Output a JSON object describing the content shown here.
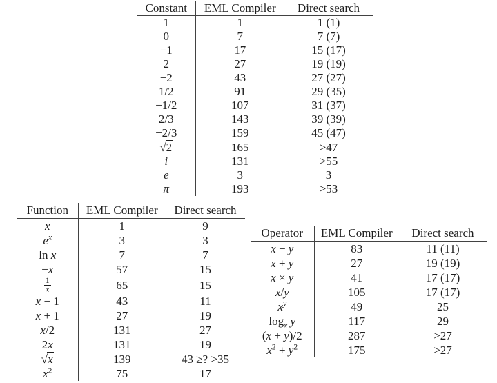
{
  "page": {
    "background": "#ffffff",
    "text_color": "#1f1f1f",
    "rule_color": "#424242"
  },
  "tables": [
    {
      "id": "constants",
      "headers": [
        "Constant",
        "EML Compiler",
        "Direct search"
      ],
      "rows": [
        [
          "1",
          "1",
          "1 (1)"
        ],
        [
          "0",
          "7",
          "7 (7)"
        ],
        [
          "−1",
          "17",
          "15 (17)"
        ],
        [
          "2",
          "27",
          "19 (19)"
        ],
        [
          "−2",
          "43",
          "27 (27)"
        ],
        [
          "1/2",
          "91",
          "29 (35)"
        ],
        [
          "−1/2",
          "107",
          "31 (37)"
        ],
        [
          "2/3",
          "143",
          "39 (39)"
        ],
        [
          "−2/3",
          "159",
          "45 (47)"
        ],
        [
          "sqrt{2}",
          "165",
          ">47"
        ],
        [
          "*i*",
          "131",
          ">55"
        ],
        [
          "*e*",
          "3",
          "3"
        ],
        [
          "*π*",
          "193",
          ">53"
        ]
      ]
    },
    {
      "id": "functions",
      "headers": [
        "Function",
        "EML Compiler",
        "Direct search"
      ],
      "rows": [
        [
          "*x*",
          "1",
          "9"
        ],
        [
          "*e*^{*x*}",
          "3",
          "3"
        ],
        [
          "ln *x*",
          "7",
          "7"
        ],
        [
          "−*x*",
          "57",
          "15"
        ],
        [
          "frac{1}{*x*}",
          "65",
          "15"
        ],
        [
          "*x* − 1",
          "43",
          "11"
        ],
        [
          "*x* + 1",
          "27",
          "19"
        ],
        [
          "*x*/2",
          "131",
          "27"
        ],
        [
          "2*x*",
          "131",
          "19"
        ],
        [
          "sqrt{*x*}",
          "139",
          "43 ≥? >35"
        ],
        [
          "*x*^{2}",
          "75",
          "17"
        ]
      ]
    },
    {
      "id": "operators",
      "headers": [
        "Operator",
        "EML Compiler",
        "Direct search"
      ],
      "rows": [
        [
          "*x* − *y*",
          "83",
          "11 (11)"
        ],
        [
          "*x* + *y*",
          "27",
          "19 (19)"
        ],
        [
          "*x* × *y*",
          "41",
          "17 (17)"
        ],
        [
          "*x*/*y*",
          "105",
          "17 (17)"
        ],
        [
          "*x*^{*y*}",
          "49",
          "25"
        ],
        [
          "log_{*x*} *y*",
          "117",
          "29"
        ],
        [
          "(*x* + *y*)/2",
          "287",
          ">27"
        ],
        [
          "*x*^{2} + *y*^{2}",
          "175",
          ">27"
        ]
      ]
    }
  ]
}
